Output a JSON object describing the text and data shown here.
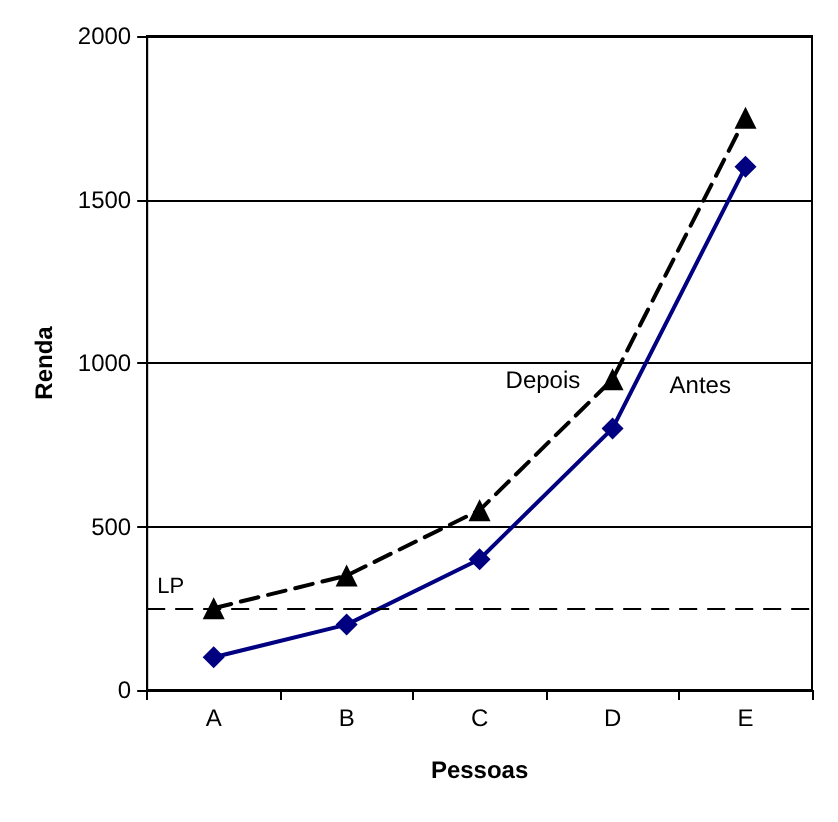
{
  "chart_data": {
    "type": "line",
    "xlabel": "Pessoas",
    "ylabel": "Renda",
    "categories": [
      "A",
      "B",
      "C",
      "D",
      "E"
    ],
    "series": [
      {
        "name": "Depois",
        "color": "#000000",
        "values": [
          250,
          350,
          550,
          950,
          1750
        ],
        "marker": "triangle",
        "line_style": "dashed"
      },
      {
        "name": "Antes",
        "color": "#000080",
        "values": [
          100,
          200,
          400,
          800,
          1600
        ],
        "marker": "diamond",
        "line_style": "solid"
      }
    ],
    "ylim": [
      0,
      2000
    ],
    "yticks": [
      0,
      500,
      1000,
      1500,
      2000
    ],
    "grid": "y",
    "ref_lines": [
      {
        "axis": "y",
        "value": 250,
        "label": "LP",
        "color": "#000000",
        "line_style": "dashed"
      }
    ]
  }
}
